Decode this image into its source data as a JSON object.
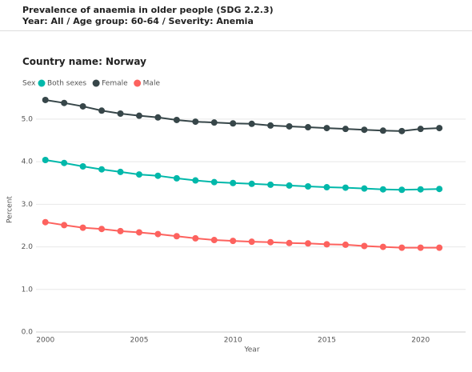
{
  "chart_data": {
    "type": "line",
    "title": "Prevalence of anaemia in older people (SDG 2.2.3)",
    "subtitle": "Year: All / Age group: 60-64 / Severity: Anemia",
    "panel_title": "Country name: Norway",
    "legend_title": "Sex",
    "xlabel": "Year",
    "ylabel": "Percent",
    "x": [
      2000,
      2001,
      2002,
      2003,
      2004,
      2005,
      2006,
      2007,
      2008,
      2009,
      2010,
      2011,
      2012,
      2013,
      2014,
      2015,
      2016,
      2017,
      2018,
      2019,
      2020,
      2021
    ],
    "series": [
      {
        "name": "Both sexes",
        "color": "#01b8aa",
        "values": [
          4.04,
          3.97,
          3.89,
          3.82,
          3.76,
          3.7,
          3.67,
          3.61,
          3.56,
          3.52,
          3.5,
          3.48,
          3.46,
          3.44,
          3.42,
          3.4,
          3.39,
          3.37,
          3.35,
          3.34,
          3.35,
          3.36
        ]
      },
      {
        "name": "Female",
        "color": "#374649",
        "values": [
          5.45,
          5.38,
          5.3,
          5.2,
          5.13,
          5.08,
          5.04,
          4.98,
          4.94,
          4.92,
          4.9,
          4.89,
          4.85,
          4.83,
          4.81,
          4.79,
          4.77,
          4.75,
          4.73,
          4.72,
          4.77,
          4.79
        ]
      },
      {
        "name": "Male",
        "color": "#fd625e",
        "values": [
          2.58,
          2.51,
          2.45,
          2.42,
          2.37,
          2.34,
          2.3,
          2.25,
          2.2,
          2.16,
          2.14,
          2.12,
          2.11,
          2.09,
          2.08,
          2.06,
          2.05,
          2.02,
          2.0,
          1.98,
          1.98,
          1.98
        ]
      }
    ],
    "xlim": [
      1999.5,
      2022.4
    ],
    "xticks": [
      2000,
      2005,
      2010,
      2015,
      2020
    ],
    "ylim": [
      0,
      5.75
    ],
    "yticks": [
      {
        "value": 0,
        "label": "0.0"
      },
      {
        "value": 1,
        "label": "1.0"
      },
      {
        "value": 2,
        "label": "2.0"
      },
      {
        "value": 3,
        "label": "3.0"
      },
      {
        "value": 4,
        "label": "4.0"
      },
      {
        "value": 5,
        "label": "5.0"
      }
    ],
    "grid": true
  }
}
